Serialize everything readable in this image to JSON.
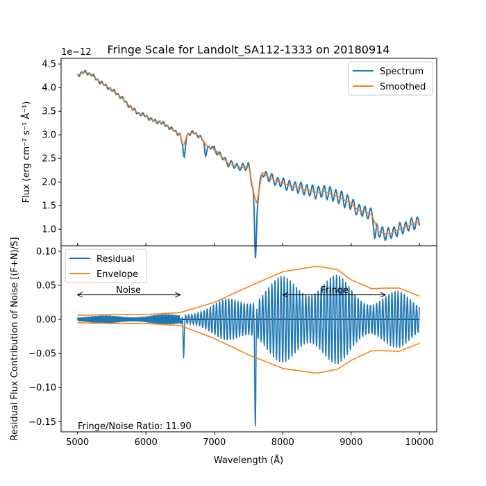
{
  "chart_data": {
    "type": "line",
    "title": "Fringe Scale for Landolt_SA112-1333 on 20180914",
    "xlabel": "Wavelength (Å)",
    "xlim": [
      4760,
      10250
    ],
    "xticks": [
      5000,
      6000,
      7000,
      8000,
      9000,
      10000
    ],
    "top": {
      "ylabel": "Flux (erg cm⁻² s⁻¹ Å⁻¹)",
      "offset_text": "1e−12",
      "ylim": [
        0.65,
        4.62
      ],
      "yticks": [
        "1.0",
        "1.5",
        "2.0",
        "2.5",
        "3.0",
        "3.5",
        "4.0",
        "4.5"
      ],
      "ytick_values": [
        1.0,
        1.5,
        2.0,
        2.5,
        3.0,
        3.5,
        4.0,
        4.5
      ],
      "legend": [
        "Spectrum",
        "Smoothed"
      ],
      "legend_loc": "upper right",
      "smoothed_x": [
        5000,
        5100,
        5200,
        5300,
        5400,
        5500,
        5600,
        5700,
        5800,
        5900,
        6000,
        6100,
        6200,
        6300,
        6400,
        6500,
        6550,
        6600,
        6700,
        6800,
        6900,
        7000,
        7100,
        7200,
        7300,
        7400,
        7500,
        7580,
        7620,
        7700,
        7800,
        7900,
        8000,
        8100,
        8200,
        8300,
        8400,
        8500,
        8600,
        8700,
        8800,
        8900,
        9000,
        9100,
        9200,
        9300,
        9400,
        9500,
        9600,
        9700,
        9800,
        9900,
        10000
      ],
      "smoothed_y": [
        4.27,
        4.33,
        4.28,
        4.15,
        4.05,
        3.95,
        3.85,
        3.7,
        3.55,
        3.45,
        3.4,
        3.3,
        3.27,
        3.2,
        3.1,
        3.0,
        2.75,
        3.0,
        3.05,
        2.95,
        2.75,
        2.7,
        2.55,
        2.4,
        2.35,
        2.3,
        2.35,
        1.75,
        1.55,
        2.2,
        2.1,
        2.02,
        1.98,
        1.92,
        1.9,
        1.85,
        1.82,
        1.78,
        1.8,
        1.75,
        1.7,
        1.62,
        1.55,
        1.4,
        1.38,
        1.3,
        0.95,
        0.9,
        0.92,
        1.0,
        1.05,
        1.12,
        1.15
      ],
      "spectrum_dips": [
        [
          6560,
          0.3
        ],
        [
          6870,
          0.25
        ],
        [
          7600,
          1.3
        ],
        [
          9350,
          0.3
        ]
      ]
    },
    "bottom": {
      "ylabel": "Residual Flux Contribution of Noise [(F+N)/S]",
      "ylim": [
        -0.165,
        0.108
      ],
      "yticks": [
        "−0.15",
        "−0.10",
        "−0.05",
        "0.00",
        "0.05",
        "0.10"
      ],
      "ytick_values": [
        -0.15,
        -0.1,
        -0.05,
        0.0,
        0.05,
        0.1
      ],
      "legend": [
        "Residual",
        "Envelope"
      ],
      "legend_loc": "upper left",
      "envelope_x": [
        5000,
        5500,
        6000,
        6500,
        7000,
        7500,
        8000,
        8500,
        8800,
        9000,
        9300,
        9500,
        9700,
        10000
      ],
      "envelope_y": [
        0.006,
        0.007,
        0.007,
        0.01,
        0.025,
        0.048,
        0.07,
        0.078,
        0.073,
        0.058,
        0.045,
        0.046,
        0.046,
        0.034
      ],
      "envelope_lower_y": [
        -0.005,
        -0.006,
        -0.006,
        -0.009,
        -0.028,
        -0.052,
        -0.072,
        -0.079,
        -0.073,
        -0.06,
        -0.046,
        -0.046,
        -0.047,
        -0.035
      ],
      "noise_range": [
        5000,
        6500
      ],
      "noise_label": "Noise",
      "fringe_range": [
        8000,
        9500
      ],
      "fringe_label": "Fringe",
      "ratio_label": "Fringe/Noise Ratio: 11.90"
    },
    "colors": {
      "spectrum": "#1f77b4",
      "smoothed": "#ff7f0e"
    },
    "grid": false
  }
}
